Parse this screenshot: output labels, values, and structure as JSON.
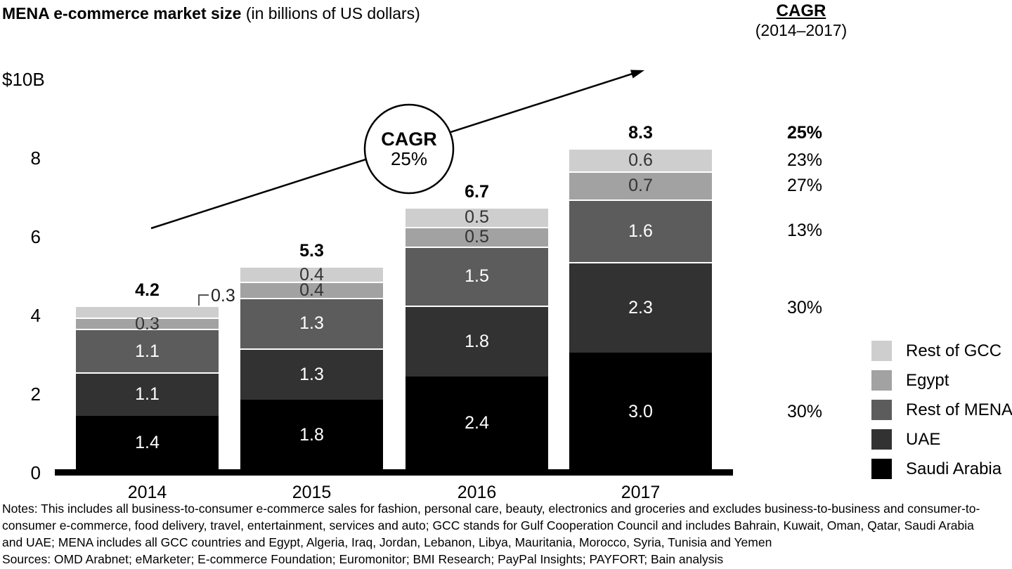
{
  "title": {
    "main": "MENA e-commerce market size",
    "sub": " (in billions of US dollars)"
  },
  "cagr_header": {
    "label": "CAGR",
    "range": "(2014–2017)"
  },
  "y_axis": {
    "top_label": "$10B",
    "ticks": [
      8,
      6,
      4,
      2,
      0
    ]
  },
  "annotation": {
    "circle_line1": "CAGR",
    "circle_line2": "25%"
  },
  "callout_2014_rest_of_gcc": "0.3",
  "chart_data": {
    "type": "bar",
    "stacked": true,
    "title": "MENA e-commerce market size (in billions of US dollars)",
    "xlabel": "",
    "ylabel": "$10B",
    "ylim": [
      0,
      10
    ],
    "grid": false,
    "legend_position": "right",
    "categories": [
      "2014",
      "2015",
      "2016",
      "2017"
    ],
    "totals": [
      "4.2",
      "5.3",
      "6.7",
      "8.3"
    ],
    "total_cagr": "25%",
    "series": [
      {
        "name": "Saudi Arabia",
        "color": "#000000",
        "text_color": "#ffffff",
        "values": [
          1.4,
          1.8,
          2.4,
          3.0
        ],
        "labels": [
          "1.4",
          "1.8",
          "2.4",
          "3.0"
        ],
        "cagr": "30%"
      },
      {
        "name": "UAE",
        "color": "#323232",
        "text_color": "#ffffff",
        "values": [
          1.1,
          1.3,
          1.8,
          2.3
        ],
        "labels": [
          "1.1",
          "1.3",
          "1.8",
          "2.3"
        ],
        "cagr": "30%"
      },
      {
        "name": "Rest of MENA",
        "color": "#5c5c5c",
        "text_color": "#ffffff",
        "values": [
          1.1,
          1.3,
          1.5,
          1.6
        ],
        "labels": [
          "1.1",
          "1.3",
          "1.5",
          "1.6"
        ],
        "cagr": "13%"
      },
      {
        "name": "Egypt",
        "color": "#a2a2a2",
        "text_color": "#333333",
        "values": [
          0.3,
          0.4,
          0.5,
          0.7
        ],
        "labels": [
          "0.3",
          "0.4",
          "0.5",
          "0.7"
        ],
        "cagr": "27%"
      },
      {
        "name": "Rest of GCC",
        "color": "#cecece",
        "text_color": "#333333",
        "values": [
          0.3,
          0.4,
          0.5,
          0.6
        ],
        "labels": [
          "0.3",
          "0.4",
          "0.5",
          "0.6"
        ],
        "cagr": "23%"
      }
    ]
  },
  "legend": {
    "items": [
      {
        "label": "Rest of GCC",
        "color": "#cecece"
      },
      {
        "label": "Egypt",
        "color": "#a2a2a2"
      },
      {
        "label": "Rest of MENA",
        "color": "#5c5c5c"
      },
      {
        "label": "UAE",
        "color": "#323232"
      },
      {
        "label": "Saudi Arabia",
        "color": "#000000"
      }
    ]
  },
  "notes_lines": [
    "Notes: This includes all business-to-consumer e-commerce sales for fashion, personal care, beauty, electronics and groceries and excludes business-to-business and consumer-to-",
    "consumer e-commerce, food delivery, travel, entertainment, services and auto; GCC stands for Gulf Cooperation Council and includes Bahrain, Kuwait, Oman, Qatar, Saudi Arabia",
    "and UAE; MENA includes all GCC countries and Egypt, Algeria, Iraq, Jordan, Lebanon, Libya, Mauritania, Morocco, Syria, Tunisia and Yemen"
  ],
  "sources": "Sources: OMD Arabnet; eMarketer; E-commerce Foundation; Euromonitor; BMI Research; PayPal Insights; PAYFORT; Bain analysis"
}
